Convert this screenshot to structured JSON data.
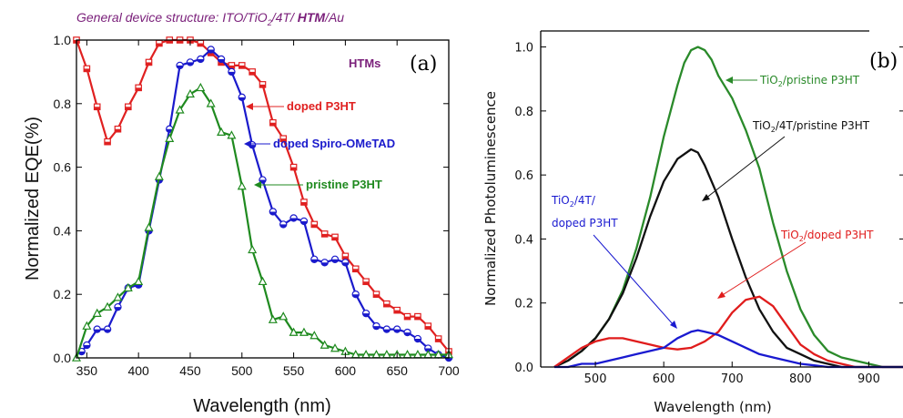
{
  "figure_title": {
    "prefix": "General device structure: ITO/TiO",
    "sub": "2",
    "mid": "/4T/ ",
    "htm": "HTM",
    "suffix": "/Au"
  },
  "chart_data": [
    {
      "type": "line",
      "panel": "(a)",
      "xlabel": "Wavelength (nm)",
      "ylabel": "Normalized EQE(%)",
      "xlim": [
        340,
        700
      ],
      "ylim": [
        0,
        1.0
      ],
      "x_ticks": [
        "350",
        "400",
        "450",
        "500",
        "550",
        "600",
        "650",
        "700"
      ],
      "y_ticks": [
        "0.0",
        "0.2",
        "0.4",
        "0.6",
        "0.8",
        "1.0"
      ],
      "legend_title": "HTMs",
      "series": [
        {
          "name": "doped P3HT",
          "color": "#e02020",
          "marker": "square",
          "x": [
            340,
            350,
            360,
            370,
            380,
            390,
            400,
            410,
            420,
            430,
            440,
            450,
            460,
            470,
            480,
            490,
            500,
            510,
            520,
            530,
            540,
            550,
            560,
            570,
            580,
            590,
            600,
            610,
            620,
            630,
            640,
            650,
            660,
            670,
            680,
            690,
            700
          ],
          "y": [
            1.0,
            0.91,
            0.79,
            0.68,
            0.72,
            0.79,
            0.85,
            0.93,
            0.99,
            1.0,
            1.0,
            1.0,
            0.99,
            0.96,
            0.93,
            0.92,
            0.92,
            0.9,
            0.86,
            0.74,
            0.69,
            0.6,
            0.49,
            0.42,
            0.39,
            0.38,
            0.32,
            0.28,
            0.24,
            0.2,
            0.17,
            0.15,
            0.13,
            0.13,
            0.1,
            0.06,
            0.02
          ]
        },
        {
          "name": "doped Spiro-OMeTAD",
          "color": "#1a1acc",
          "marker": "circle",
          "x": [
            345,
            350,
            360,
            370,
            380,
            390,
            400,
            410,
            420,
            430,
            440,
            450,
            460,
            470,
            480,
            490,
            500,
            510,
            520,
            530,
            540,
            550,
            560,
            570,
            580,
            590,
            600,
            610,
            620,
            630,
            640,
            650,
            660,
            670,
            680,
            690,
            700
          ],
          "y": [
            0.02,
            0.04,
            0.09,
            0.09,
            0.16,
            0.22,
            0.23,
            0.4,
            0.56,
            0.72,
            0.92,
            0.93,
            0.94,
            0.97,
            0.94,
            0.9,
            0.82,
            0.67,
            0.56,
            0.46,
            0.42,
            0.44,
            0.43,
            0.31,
            0.3,
            0.31,
            0.3,
            0.2,
            0.14,
            0.1,
            0.09,
            0.09,
            0.08,
            0.06,
            0.03,
            0.01,
            0.0
          ]
        },
        {
          "name": "pristine P3HT",
          "color": "#1f8a1f",
          "marker": "triangle",
          "x": [
            340,
            350,
            360,
            370,
            380,
            390,
            400,
            410,
            420,
            430,
            440,
            450,
            460,
            470,
            480,
            490,
            500,
            510,
            520,
            530,
            540,
            550,
            560,
            570,
            580,
            590,
            600,
            610,
            620,
            630,
            640,
            650,
            660,
            670,
            680,
            690,
            700
          ],
          "y": [
            0.0,
            0.1,
            0.14,
            0.16,
            0.19,
            0.22,
            0.24,
            0.41,
            0.57,
            0.69,
            0.78,
            0.83,
            0.85,
            0.8,
            0.71,
            0.7,
            0.54,
            0.34,
            0.24,
            0.12,
            0.13,
            0.08,
            0.08,
            0.07,
            0.04,
            0.03,
            0.02,
            0.01,
            0.01,
            0.01,
            0.01,
            0.01,
            0.01,
            0.01,
            0.01,
            0.01,
            0.01
          ]
        }
      ],
      "annotations": [
        {
          "text": "doped P3HT",
          "color": "#e02020"
        },
        {
          "text": "doped Spiro-OMeTAD",
          "color": "#1a1acc"
        },
        {
          "text": "pristine P3HT",
          "color": "#1f8a1f"
        }
      ]
    },
    {
      "type": "line",
      "panel": "(b)",
      "xlabel": "Wavelength (nm)",
      "ylabel": "Normalized Photoluminescence",
      "xlim": [
        420,
        950
      ],
      "ylim": [
        0,
        1.05
      ],
      "x_ticks": [
        "500",
        "600",
        "700",
        "800",
        "900"
      ],
      "y_ticks": [
        "0.0",
        "0.2",
        "0.4",
        "0.6",
        "0.8",
        "1.0"
      ],
      "series": [
        {
          "name": "TiO2/pristine P3HT",
          "color": "#2a8a2a",
          "x": [
            440,
            460,
            480,
            500,
            520,
            540,
            560,
            580,
            600,
            620,
            630,
            640,
            650,
            660,
            670,
            680,
            700,
            720,
            740,
            760,
            780,
            800,
            820,
            840,
            860,
            880,
            900,
            920,
            940,
            950
          ],
          "y": [
            0.0,
            0.02,
            0.05,
            0.09,
            0.15,
            0.24,
            0.37,
            0.53,
            0.72,
            0.88,
            0.95,
            0.99,
            1.0,
            0.99,
            0.96,
            0.91,
            0.84,
            0.74,
            0.62,
            0.45,
            0.3,
            0.18,
            0.1,
            0.05,
            0.03,
            0.02,
            0.01,
            0.0,
            0.0,
            0.0
          ]
        },
        {
          "name": "TiO2/4T/pristine P3HT",
          "color": "#111111",
          "x": [
            440,
            460,
            480,
            500,
            520,
            540,
            560,
            580,
            600,
            620,
            640,
            650,
            660,
            680,
            700,
            720,
            740,
            760,
            780,
            800,
            820,
            840,
            860,
            880,
            900,
            920,
            950
          ],
          "y": [
            0.0,
            0.02,
            0.05,
            0.09,
            0.15,
            0.23,
            0.34,
            0.47,
            0.58,
            0.65,
            0.68,
            0.67,
            0.63,
            0.53,
            0.4,
            0.28,
            0.18,
            0.11,
            0.06,
            0.04,
            0.02,
            0.01,
            0.0,
            0.0,
            0.0,
            0.0,
            0.0
          ]
        },
        {
          "name": "TiO2/doped P3HT",
          "color": "#e01c1c",
          "x": [
            440,
            460,
            480,
            500,
            520,
            540,
            560,
            580,
            600,
            620,
            640,
            660,
            680,
            700,
            720,
            740,
            760,
            780,
            800,
            820,
            840,
            860,
            880,
            900,
            920,
            950
          ],
          "y": [
            0.0,
            0.03,
            0.06,
            0.08,
            0.09,
            0.09,
            0.08,
            0.07,
            0.06,
            0.055,
            0.06,
            0.08,
            0.11,
            0.17,
            0.21,
            0.22,
            0.19,
            0.13,
            0.07,
            0.04,
            0.02,
            0.01,
            0.0,
            0.0,
            0.0,
            0.0
          ]
        },
        {
          "name": "TiO2/4T/doped P3HT",
          "color": "#1a1ad0",
          "x": [
            440,
            460,
            480,
            500,
            520,
            540,
            560,
            580,
            600,
            620,
            640,
            650,
            660,
            680,
            700,
            720,
            740,
            760,
            780,
            800,
            820,
            840,
            860,
            880,
            900,
            950
          ],
          "y": [
            0.0,
            0.0,
            0.01,
            0.01,
            0.02,
            0.03,
            0.04,
            0.05,
            0.06,
            0.09,
            0.11,
            0.115,
            0.11,
            0.1,
            0.08,
            0.06,
            0.04,
            0.03,
            0.02,
            0.01,
            0.005,
            0.0,
            0.0,
            0.0,
            0.0,
            0.0
          ]
        }
      ],
      "annotations": [
        {
          "text": "TiO",
          "sub": "2",
          "rest": "/pristine P3HT",
          "color": "#2a8a2a"
        },
        {
          "text": "TiO",
          "sub": "2",
          "rest": "/4T/pristine P3HT",
          "color": "#111111"
        },
        {
          "text": "TiO",
          "sub": "2",
          "rest": "/4T/",
          "color": "#1a1ad0"
        },
        {
          "text": "doped P3HT",
          "color": "#1a1ad0"
        },
        {
          "text": "TiO",
          "sub": "2",
          "rest": "/doped P3HT",
          "color": "#e01c1c"
        }
      ]
    }
  ]
}
